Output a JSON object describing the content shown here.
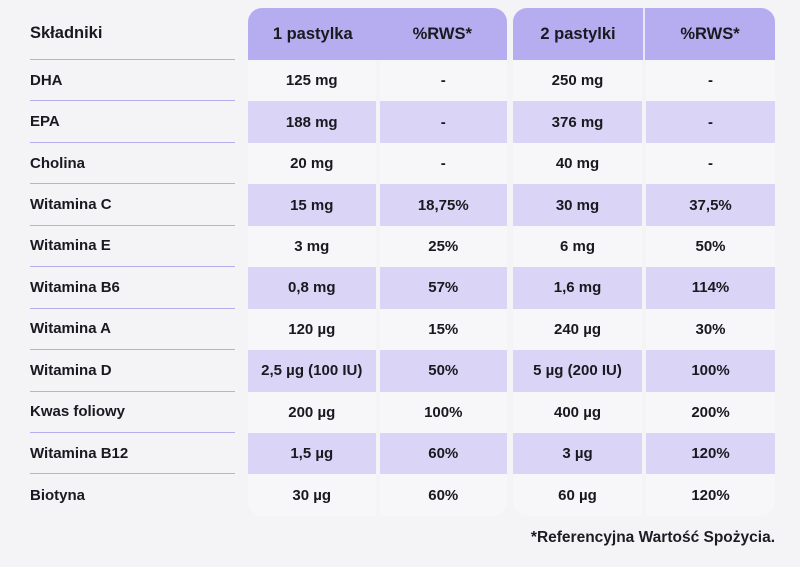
{
  "colors": {
    "page_background": "#f4f3f6",
    "panel_header_bg": "#b6adf0",
    "row_purple": "#dad5f7",
    "row_light": "#f7f6f9",
    "separator_line": "#b4afea",
    "text": "#19191f"
  },
  "ingredients": {
    "header": "Składniki"
  },
  "panels": [
    {
      "dose_label": "1 pastylka",
      "rws_label": "%RWS*"
    },
    {
      "dose_label": "2 pastylki",
      "rws_label": "%RWS*"
    }
  ],
  "footnote": "*Referencyjna Wartość Spożycia.",
  "rows": [
    {
      "name": "DHA",
      "dose1": "125 mg",
      "rws1": "-",
      "dose2": "250 mg",
      "rws2": "-"
    },
    {
      "name": "EPA",
      "dose1": "188 mg",
      "rws1": "-",
      "dose2": "376 mg",
      "rws2": "-"
    },
    {
      "name": "Cholina",
      "dose1": "20 mg",
      "rws1": "-",
      "dose2": "40 mg",
      "rws2": "-"
    },
    {
      "name": "Witamina C",
      "dose1": "15 mg",
      "rws1": "18,75%",
      "dose2": "30 mg",
      "rws2": "37,5%"
    },
    {
      "name": "Witamina E",
      "dose1": "3 mg",
      "rws1": "25%",
      "dose2": "6 mg",
      "rws2": "50%"
    },
    {
      "name": "Witamina B6",
      "dose1": "0,8 mg",
      "rws1": "57%",
      "dose2": "1,6 mg",
      "rws2": "114%"
    },
    {
      "name": "Witamina A",
      "dose1": "120 µg",
      "rws1": "15%",
      "dose2": "240 µg",
      "rws2": "30%"
    },
    {
      "name": "Witamina D",
      "dose1": "2,5 µg (100 IU)",
      "rws1": "50%",
      "dose2": "5 µg (200 IU)",
      "rws2": "100%"
    },
    {
      "name": "Kwas foliowy",
      "dose1": "200 µg",
      "rws1": "100%",
      "dose2": "400 µg",
      "rws2": "200%"
    },
    {
      "name": "Witamina B12",
      "dose1": "1,5 µg",
      "rws1": "60%",
      "dose2": "3 µg",
      "rws2": "120%"
    },
    {
      "name": "Biotyna",
      "dose1": "30 µg",
      "rws1": "60%",
      "dose2": "60 µg",
      "rws2": "120%"
    }
  ]
}
